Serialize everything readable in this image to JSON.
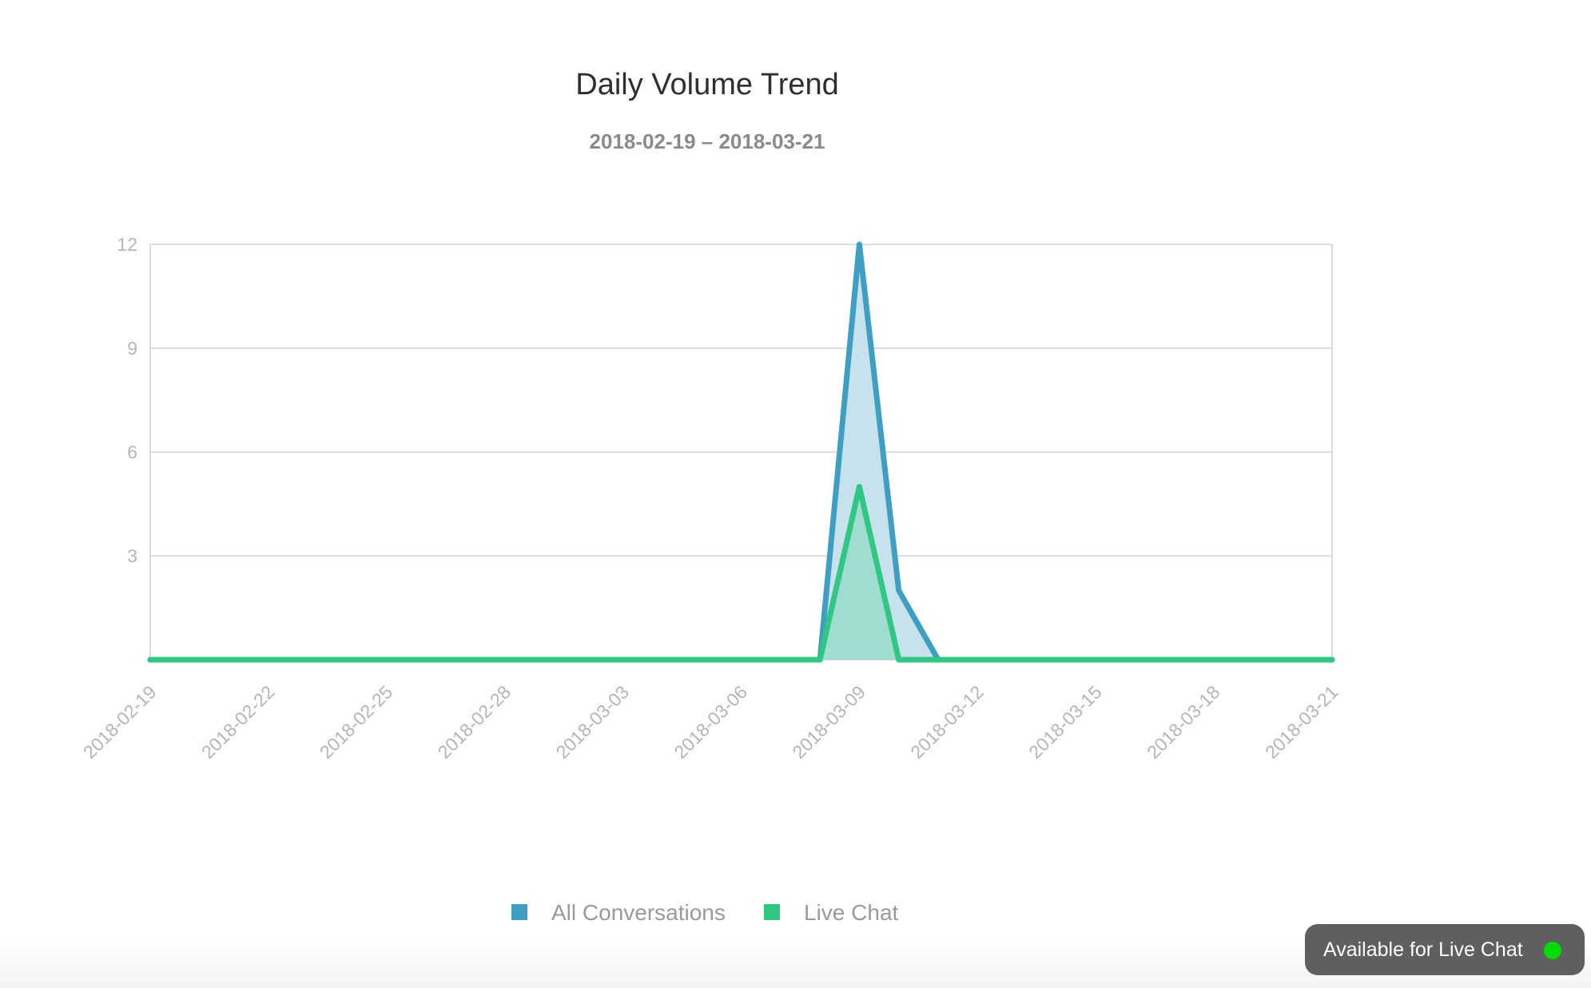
{
  "chart_data": {
    "type": "area",
    "title": "Daily Volume Trend",
    "subtitle": "2018-02-19 – 2018-03-21",
    "x_start": "2018-02-19",
    "x_end": "2018-03-21",
    "x": [
      "2018-02-19",
      "2018-02-20",
      "2018-02-21",
      "2018-02-22",
      "2018-02-23",
      "2018-02-24",
      "2018-02-25",
      "2018-02-26",
      "2018-02-27",
      "2018-02-28",
      "2018-03-01",
      "2018-03-02",
      "2018-03-03",
      "2018-03-04",
      "2018-03-05",
      "2018-03-06",
      "2018-03-07",
      "2018-03-08",
      "2018-03-09",
      "2018-03-10",
      "2018-03-11",
      "2018-03-12",
      "2018-03-13",
      "2018-03-14",
      "2018-03-15",
      "2018-03-16",
      "2018-03-17",
      "2018-03-18",
      "2018-03-19",
      "2018-03-20",
      "2018-03-21"
    ],
    "series": [
      {
        "name": "All Conversations",
        "color": "#3f9fc3",
        "fill": "#c7e2ec",
        "values": [
          0,
          0,
          0,
          0,
          0,
          0,
          0,
          0,
          0,
          0,
          0,
          0,
          0,
          0,
          0,
          0,
          0,
          0,
          12,
          2,
          0,
          0,
          0,
          0,
          0,
          0,
          0,
          0,
          0,
          0,
          0
        ]
      },
      {
        "name": "Live Chat",
        "color": "#2fc783",
        "fill": "#9bdccc",
        "values": [
          0,
          0,
          0,
          0,
          0,
          0,
          0,
          0,
          0,
          0,
          0,
          0,
          0,
          0,
          0,
          0,
          0,
          0,
          5,
          0,
          0,
          0,
          0,
          0,
          0,
          0,
          0,
          0,
          0,
          0,
          0
        ]
      }
    ],
    "x_tick_labels": [
      "2018-02-19",
      "2018-02-22",
      "2018-02-25",
      "2018-02-28",
      "2018-03-03",
      "2018-03-06",
      "2018-03-09",
      "2018-03-12",
      "2018-03-15",
      "2018-03-18",
      "2018-03-21"
    ],
    "y_ticks": [
      3,
      6,
      9,
      12
    ],
    "ylim": [
      0,
      12
    ],
    "xlabel": "",
    "ylabel": "",
    "grid": true,
    "legend_position": "bottom-center"
  },
  "status_badge": {
    "label": "Available for Live Chat",
    "dot_color": "#00dd00",
    "background": "#5f5f5f"
  }
}
